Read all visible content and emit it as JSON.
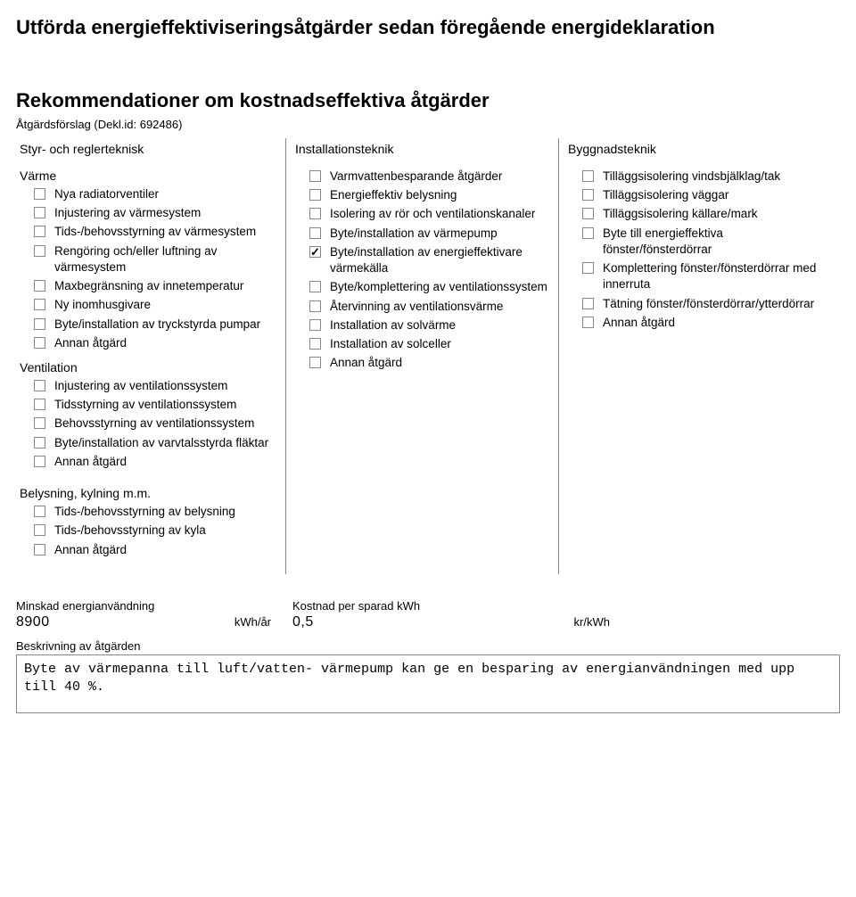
{
  "title_top": "Utförda energieffektiviseringsåtgärder sedan föregående energideklaration",
  "title_main": "Rekommendationer om kostnadseffektiva åtgärder",
  "subtitle": "Åtgärdsförslag (Dekl.id: 692486)",
  "col_left_head": "Styr- och reglerteknisk",
  "col_mid_head": "Installationsteknik",
  "col_right_head": "Byggnadsteknik",
  "left_groups": [
    {
      "title": "Värme",
      "items": [
        {
          "label": "Nya radiatorventiler",
          "checked": false
        },
        {
          "label": "Injustering av värmesystem",
          "checked": false
        },
        {
          "label": "Tids-/behovsstyrning av värmesystem",
          "checked": false
        },
        {
          "label": "Rengöring och/eller luftning av värmesystem",
          "checked": false
        },
        {
          "label": "Maxbegränsning av innetemperatur",
          "checked": false
        },
        {
          "label": "Ny inomhusgivare",
          "checked": false
        },
        {
          "label": "Byte/installation av tryckstyrda pumpar",
          "checked": false
        },
        {
          "label": "Annan åtgärd",
          "checked": false
        }
      ]
    },
    {
      "title": "Ventilation",
      "items": [
        {
          "label": "Injustering av ventilationssystem",
          "checked": false
        },
        {
          "label": "Tidsstyrning av ventilationssystem",
          "checked": false
        },
        {
          "label": "Behovsstyrning av ventilationssystem",
          "checked": false
        },
        {
          "label": "Byte/installation av varvtalsstyrda fläktar",
          "checked": false
        },
        {
          "label": "Annan åtgärd",
          "checked": false
        }
      ]
    },
    {
      "title": "Belysning, kylning m.m.",
      "items": [
        {
          "label": "Tids-/behovsstyrning av belysning",
          "checked": false
        },
        {
          "label": "Tids-/behovsstyrning av kyla",
          "checked": false
        },
        {
          "label": "Annan åtgärd",
          "checked": false
        }
      ]
    }
  ],
  "mid_items": [
    {
      "label": "Varmvattenbesparande åtgärder",
      "checked": false
    },
    {
      "label": "Energieffektiv belysning",
      "checked": false
    },
    {
      "label": "Isolering av rör och ventilationskanaler",
      "checked": false
    },
    {
      "label": "Byte/installation av värmepump",
      "checked": false
    },
    {
      "label": "Byte/installation av energieffektivare värmekälla",
      "checked": true
    },
    {
      "label": "Byte/komplettering av ventilationssystem",
      "checked": false
    },
    {
      "label": "Återvinning av ventilationsvärme",
      "checked": false
    },
    {
      "label": "Installation av solvärme",
      "checked": false
    },
    {
      "label": "Installation av solceller",
      "checked": false
    },
    {
      "label": "Annan åtgärd",
      "checked": false
    }
  ],
  "right_items": [
    {
      "label": "Tilläggsisolering vindsbjälklag/tak",
      "checked": false
    },
    {
      "label": "Tilläggsisolering väggar",
      "checked": false
    },
    {
      "label": "Tilläggsisolering källare/mark",
      "checked": false
    },
    {
      "label": "Byte till energieffektiva fönster/fönsterdörrar",
      "checked": false
    },
    {
      "label": "Komplettering fönster/fönsterdörrar med innerruta",
      "checked": false
    },
    {
      "label": "Tätning fönster/fönsterdörrar/ytterdörrar",
      "checked": false
    },
    {
      "label": "Annan åtgärd",
      "checked": false
    }
  ],
  "bottom": {
    "reduce_label": "Minskad energianvändning",
    "reduce_value": "8900",
    "reduce_unit": "kWh/år",
    "cost_label": "Kostnad per sparad kWh",
    "cost_value": "0,5",
    "cost_unit": "kr/kWh",
    "desc_label": "Beskrivning av åtgärden",
    "desc_text": "Byte av värmepanna till luft/vatten- värmepump kan ge en besparing av energianvändningen med upp till 40 %."
  }
}
